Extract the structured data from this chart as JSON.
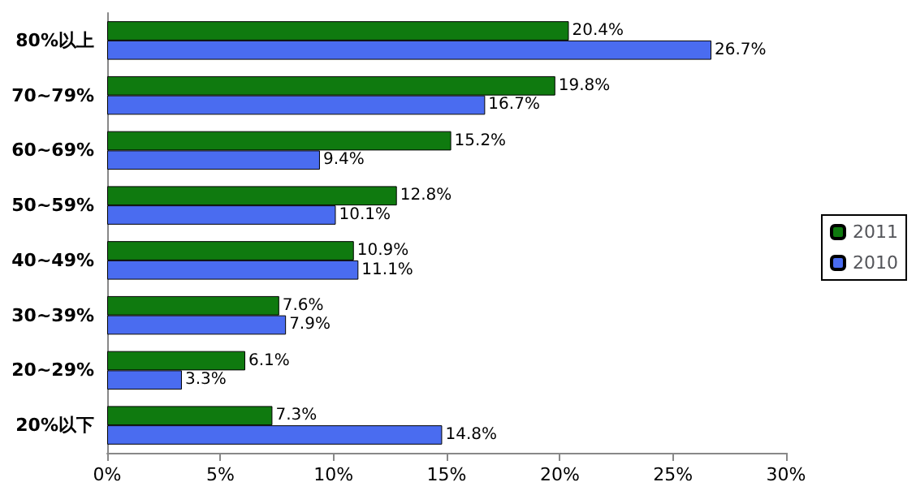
{
  "chart_data": {
    "type": "bar",
    "orientation": "horizontal",
    "categories": [
      "80%以上",
      "70~79%",
      "60~69%",
      "50~59%",
      "40~49%",
      "30~39%",
      "20~29%",
      "20%以下"
    ],
    "series": [
      {
        "name": "2011",
        "color": "#0f7a0f",
        "values": [
          20.4,
          19.8,
          15.2,
          12.8,
          10.9,
          7.6,
          6.1,
          7.3
        ],
        "value_labels": [
          "20.4%",
          "19.8%",
          "15.2%",
          "12.8%",
          "10.9%",
          "7.6%",
          "6.1%",
          "7.3%"
        ]
      },
      {
        "name": "2010",
        "color": "#4a6cf0",
        "values": [
          26.7,
          16.7,
          9.4,
          10.1,
          11.1,
          7.9,
          3.3,
          14.8
        ],
        "value_labels": [
          "26.7%",
          "16.7%",
          "9.4%",
          "10.1%",
          "11.1%",
          "7.9%",
          "3.3%",
          "14.8%"
        ]
      }
    ],
    "xlim": [
      0,
      30
    ],
    "xticks": [
      {
        "value": 0,
        "label": "0%"
      },
      {
        "value": 5,
        "label": "5%"
      },
      {
        "value": 10,
        "label": "10%"
      },
      {
        "value": 15,
        "label": "15%"
      },
      {
        "value": 20,
        "label": "20%"
      },
      {
        "value": 25,
        "label": "25%"
      },
      {
        "value": 30,
        "label": "30%"
      }
    ],
    "grid": false,
    "legend": "right"
  }
}
